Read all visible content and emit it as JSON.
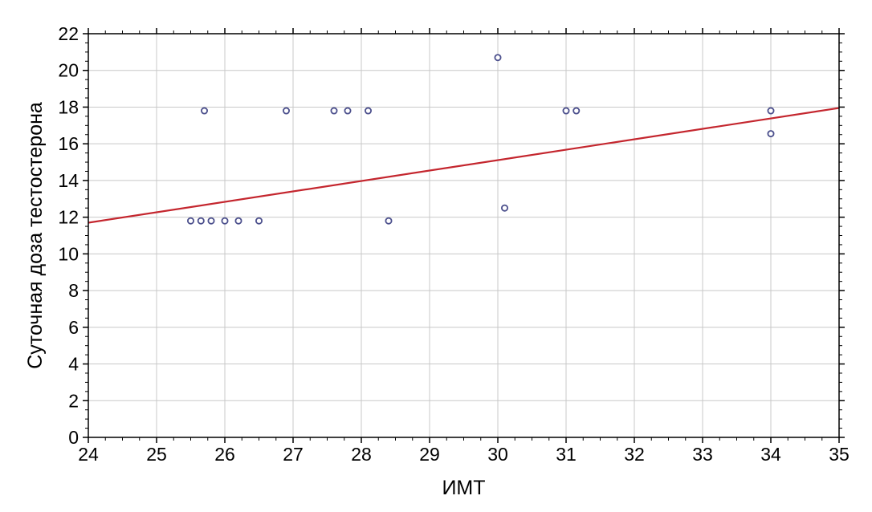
{
  "chart_data": {
    "type": "scatter",
    "title": "",
    "xlabel": "ИМТ",
    "ylabel": "Суточная доза тестостерона",
    "xlim": [
      24,
      35
    ],
    "ylim": [
      0,
      22
    ],
    "xticks": [
      24,
      25,
      26,
      27,
      28,
      29,
      30,
      31,
      32,
      33,
      34,
      35
    ],
    "yticks": [
      0,
      2,
      4,
      6,
      8,
      10,
      12,
      14,
      16,
      18,
      20,
      22
    ],
    "grid": true,
    "points": [
      {
        "x": 25.5,
        "y": 11.8
      },
      {
        "x": 25.65,
        "y": 11.8
      },
      {
        "x": 25.8,
        "y": 11.8
      },
      {
        "x": 26.0,
        "y": 11.8
      },
      {
        "x": 26.2,
        "y": 11.8
      },
      {
        "x": 26.5,
        "y": 11.8
      },
      {
        "x": 25.7,
        "y": 17.8
      },
      {
        "x": 26.9,
        "y": 17.8
      },
      {
        "x": 27.6,
        "y": 17.8
      },
      {
        "x": 27.8,
        "y": 17.8
      },
      {
        "x": 28.1,
        "y": 17.8
      },
      {
        "x": 28.4,
        "y": 11.8
      },
      {
        "x": 30.0,
        "y": 20.7
      },
      {
        "x": 30.1,
        "y": 12.5
      },
      {
        "x": 31.0,
        "y": 17.8
      },
      {
        "x": 31.15,
        "y": 17.8
      },
      {
        "x": 34.0,
        "y": 17.8
      },
      {
        "x": 34.0,
        "y": 16.55
      }
    ],
    "trend_line": {
      "x": [
        24,
        35
      ],
      "y": [
        11.7,
        17.95
      ]
    },
    "colors": {
      "points": "#4b4f8c",
      "trend": "#c4262e",
      "grid": "#c8c8c8",
      "axis": "#000000"
    }
  }
}
